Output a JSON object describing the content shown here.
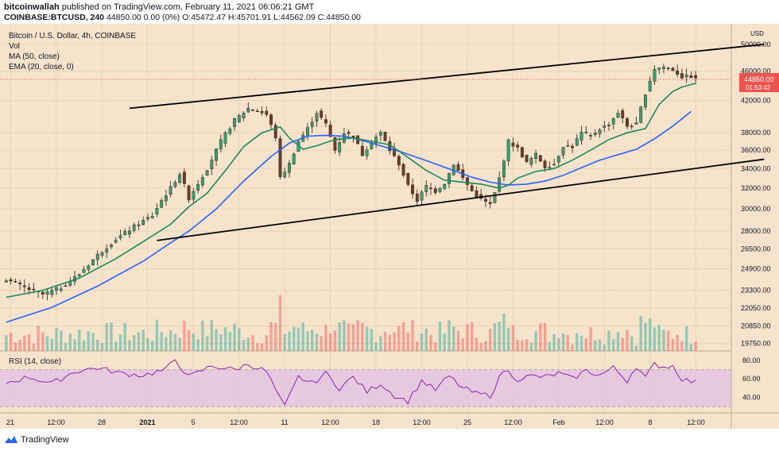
{
  "header": {
    "author": "bitcoinwallah",
    "published": "published on TradingView.com, February 11, 2021 06:06:21 GMT",
    "symbol": "COINBASE:BTCUSD, 240",
    "ohlc": "44850.00 0.00 (0%) O:45472.47 H:45701.91 L:44562.09 C:44850.00"
  },
  "legend": {
    "title": "Bitcoin / U.S. Dollar, 4h, COINBASE",
    "vol": "Vol",
    "ma": "MA (50, close)",
    "ema": "EMA (20, close, 0)"
  },
  "rsi_label": "RSI (14, close)",
  "footer": {
    "brand": "TradingView"
  },
  "colors": {
    "background": "#f6e3cc",
    "up": "#26a69a",
    "down": "#ef5350",
    "ema": "#1b8a5a",
    "ma": "#2962ff",
    "rsi": "#8e24aa",
    "rsi_band": "#e1bee7",
    "price_tag": "#ef5350"
  },
  "chart_data": {
    "type": "candlestick",
    "title": "Bitcoin / U.S. Dollar, 4h, COINBASE",
    "currency": "USD",
    "y_scale": "log",
    "price_ticks": [
      50000,
      46000,
      42000,
      38000,
      36000,
      34000,
      32000,
      30000,
      28000,
      26500,
      24900,
      23300,
      22050,
      20850,
      19750
    ],
    "last_price": 44850.0,
    "countdown": "01:53:42",
    "x_tick_labels": [
      "21",
      "12:00",
      "28",
      "2021",
      "5",
      "12:00",
      "11",
      "12:00",
      "18",
      "12:00",
      "25",
      "12:00",
      "Feb",
      "12:00",
      "8",
      "12:00"
    ],
    "price_path": [
      [
        0,
        24100
      ],
      [
        4,
        23500
      ],
      [
        8,
        23000
      ],
      [
        12,
        23500
      ],
      [
        16,
        24500
      ],
      [
        20,
        26000
      ],
      [
        24,
        27300
      ],
      [
        28,
        28400
      ],
      [
        32,
        29400
      ],
      [
        34,
        30800
      ],
      [
        36,
        32000
      ],
      [
        38,
        33500
      ],
      [
        40,
        31000
      ],
      [
        42,
        32500
      ],
      [
        44,
        34000
      ],
      [
        47,
        37000
      ],
      [
        50,
        39500
      ],
      [
        53,
        41000
      ],
      [
        55,
        40700
      ],
      [
        57,
        40200
      ],
      [
        59,
        37500
      ],
      [
        60,
        33000
      ],
      [
        62,
        34500
      ],
      [
        64,
        37000
      ],
      [
        66,
        38500
      ],
      [
        68,
        40500
      ],
      [
        70,
        39000
      ],
      [
        72,
        36000
      ],
      [
        74,
        38000
      ],
      [
        76,
        37600
      ],
      [
        78,
        35500
      ],
      [
        80,
        37000
      ],
      [
        82,
        38000
      ],
      [
        84,
        36000
      ],
      [
        86,
        34500
      ],
      [
        88,
        32200
      ],
      [
        90,
        30800
      ],
      [
        92,
        32200
      ],
      [
        94,
        31700
      ],
      [
        96,
        32500
      ],
      [
        98,
        34500
      ],
      [
        100,
        33000
      ],
      [
        102,
        31700
      ],
      [
        104,
        30900
      ],
      [
        106,
        30400
      ],
      [
        107,
        31500
      ],
      [
        108,
        33000
      ],
      [
        110,
        37000
      ],
      [
        112,
        36200
      ],
      [
        114,
        34600
      ],
      [
        116,
        35500
      ],
      [
        118,
        34200
      ],
      [
        120,
        34500
      ],
      [
        122,
        36500
      ],
      [
        124,
        36400
      ],
      [
        126,
        38000
      ],
      [
        128,
        37600
      ],
      [
        130,
        38500
      ],
      [
        132,
        39000
      ],
      [
        134,
        40500
      ],
      [
        136,
        38800
      ],
      [
        138,
        39000
      ],
      [
        140,
        43000
      ],
      [
        142,
        46400
      ],
      [
        144,
        46600
      ],
      [
        146,
        46200
      ],
      [
        148,
        45200
      ],
      [
        150,
        45300
      ],
      [
        151,
        44850
      ]
    ],
    "ema20": [
      [
        0,
        22800
      ],
      [
        8,
        23300
      ],
      [
        16,
        24200
      ],
      [
        24,
        25700
      ],
      [
        30,
        27100
      ],
      [
        36,
        28600
      ],
      [
        40,
        30200
      ],
      [
        44,
        31500
      ],
      [
        48,
        33800
      ],
      [
        52,
        36400
      ],
      [
        56,
        38000
      ],
      [
        60,
        38700
      ],
      [
        62,
        37400
      ],
      [
        65,
        36100
      ],
      [
        68,
        36500
      ],
      [
        72,
        37200
      ],
      [
        76,
        37400
      ],
      [
        80,
        37000
      ],
      [
        84,
        36600
      ],
      [
        88,
        35200
      ],
      [
        92,
        33800
      ],
      [
        96,
        32800
      ],
      [
        100,
        32600
      ],
      [
        104,
        32400
      ],
      [
        108,
        32000
      ],
      [
        110,
        32300
      ],
      [
        112,
        33000
      ],
      [
        116,
        33700
      ],
      [
        120,
        34000
      ],
      [
        124,
        34900
      ],
      [
        128,
        36000
      ],
      [
        132,
        37200
      ],
      [
        136,
        38000
      ],
      [
        140,
        38500
      ],
      [
        143,
        41500
      ],
      [
        146,
        43200
      ],
      [
        148,
        43800
      ],
      [
        151,
        44300
      ]
    ],
    "ma50": [
      [
        0,
        21100
      ],
      [
        10,
        22100
      ],
      [
        20,
        23600
      ],
      [
        30,
        25500
      ],
      [
        36,
        27000
      ],
      [
        40,
        28000
      ],
      [
        46,
        30000
      ],
      [
        52,
        32700
      ],
      [
        58,
        35300
      ],
      [
        62,
        36800
      ],
      [
        66,
        37600
      ],
      [
        70,
        37700
      ],
      [
        74,
        37600
      ],
      [
        78,
        37100
      ],
      [
        82,
        36500
      ],
      [
        86,
        35900
      ],
      [
        90,
        35200
      ],
      [
        94,
        34500
      ],
      [
        98,
        33800
      ],
      [
        102,
        33100
      ],
      [
        106,
        32600
      ],
      [
        110,
        32300
      ],
      [
        114,
        32400
      ],
      [
        118,
        32700
      ],
      [
        122,
        33300
      ],
      [
        126,
        34100
      ],
      [
        130,
        34900
      ],
      [
        134,
        35500
      ],
      [
        138,
        36100
      ],
      [
        142,
        37300
      ],
      [
        146,
        38800
      ],
      [
        150,
        40600
      ]
    ],
    "channel_lines": [
      {
        "from": [
          27,
          41000
        ],
        "to": [
          166,
          50000
        ]
      },
      {
        "from": [
          33,
          27200
        ],
        "to": [
          166,
          35000
        ]
      }
    ],
    "rsi": {
      "label": "RSI (14, close)",
      "ticks": [
        80,
        60,
        40
      ],
      "band": [
        30,
        70
      ],
      "values": [
        [
          0,
          56
        ],
        [
          5,
          62
        ],
        [
          10,
          55
        ],
        [
          15,
          68
        ],
        [
          20,
          72
        ],
        [
          25,
          66
        ],
        [
          30,
          64
        ],
        [
          35,
          70
        ],
        [
          37,
          81
        ],
        [
          40,
          62
        ],
        [
          45,
          74
        ],
        [
          50,
          70
        ],
        [
          53,
          76
        ],
        [
          57,
          68
        ],
        [
          60,
          38
        ],
        [
          61,
          30
        ],
        [
          64,
          62
        ],
        [
          67,
          55
        ],
        [
          70,
          66
        ],
        [
          73,
          50
        ],
        [
          76,
          62
        ],
        [
          79,
          46
        ],
        [
          82,
          55
        ],
        [
          85,
          42
        ],
        [
          88,
          36
        ],
        [
          91,
          58
        ],
        [
          94,
          48
        ],
        [
          97,
          63
        ],
        [
          100,
          50
        ],
        [
          103,
          44
        ],
        [
          106,
          42
        ],
        [
          109,
          70
        ],
        [
          112,
          60
        ],
        [
          115,
          63
        ],
        [
          118,
          62
        ],
        [
          121,
          66
        ],
        [
          124,
          60
        ],
        [
          127,
          69
        ],
        [
          130,
          64
        ],
        [
          133,
          72
        ],
        [
          136,
          58
        ],
        [
          138,
          74
        ],
        [
          140,
          61
        ],
        [
          142,
          76
        ],
        [
          144,
          73
        ],
        [
          146,
          74
        ],
        [
          148,
          60
        ],
        [
          151,
          56
        ]
      ]
    }
  }
}
